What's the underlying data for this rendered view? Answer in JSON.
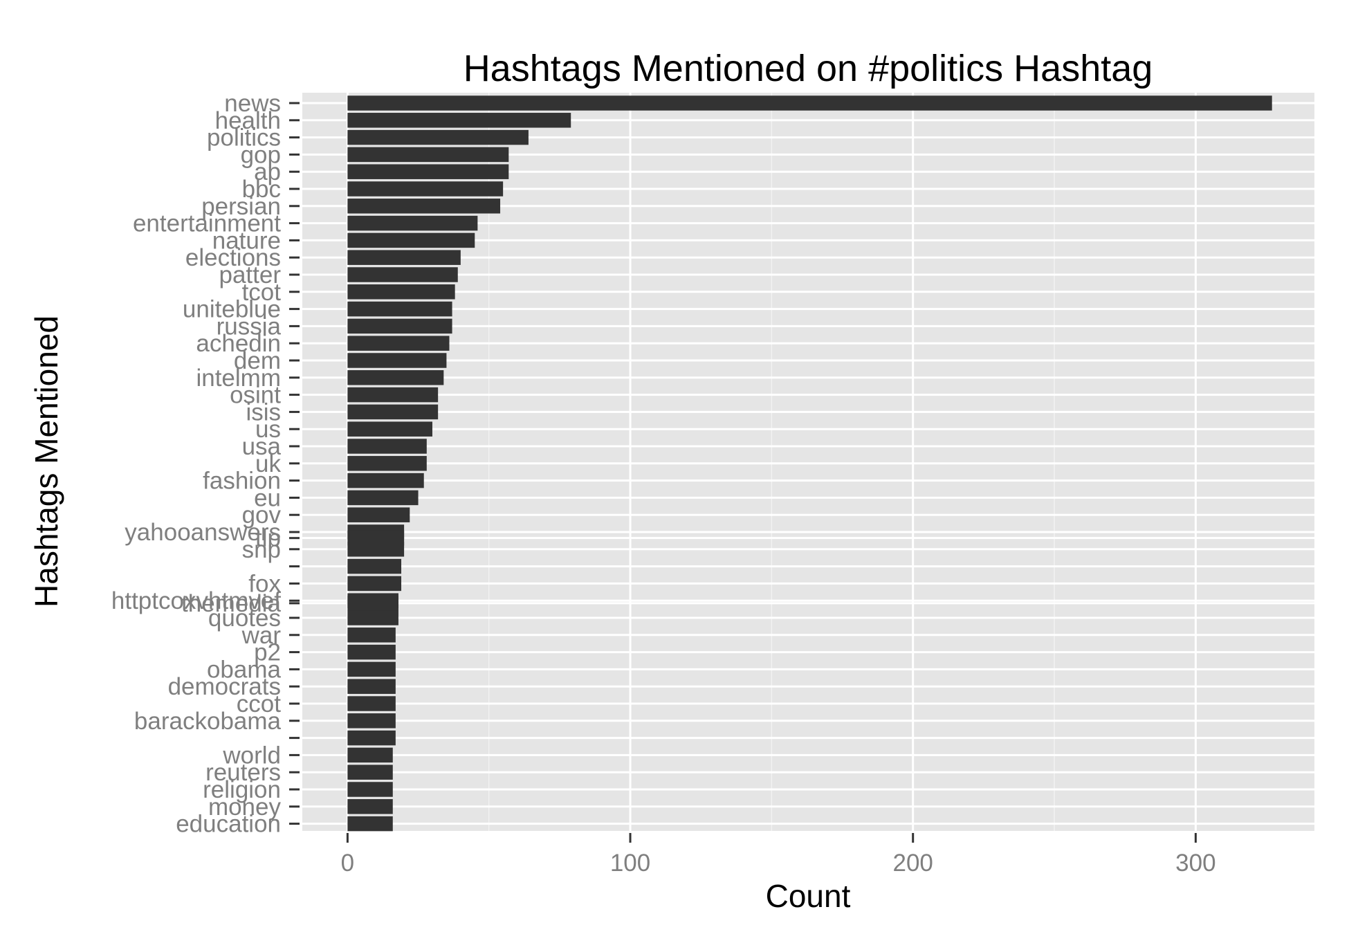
{
  "chart_data": {
    "type": "bar",
    "orientation": "horizontal",
    "title": "Hashtags Mentioned on #politics Hashtag",
    "xlabel": "Count",
    "ylabel": "Hashtags Mentioned",
    "xlim": [
      -16,
      342
    ],
    "x_ticks": [
      0,
      100,
      200,
      300
    ],
    "grid": true,
    "colors": {
      "bar": "#333333",
      "panel": "#e5e5e5",
      "grid": "#ffffff",
      "tick_label": "#7f7f7f"
    },
    "categories": [
      "news",
      "health",
      "politics",
      "gop",
      "ap",
      "bbc",
      "persian",
      "entertainment",
      "nature",
      "elections",
      "patter",
      "tcot",
      "uniteblue",
      "russia",
      "achedin",
      "dem",
      "intelmm",
      "osint",
      "isis",
      "us",
      "usa",
      "uk",
      "fashion",
      "eu",
      "gov",
      "yahooanswers",
      "tlp",
      "snp",
      "",
      "fox",
      "httptcoxvhtmvef",
      "themedia",
      "quotes",
      "war",
      "p2",
      "obama",
      "democrats",
      "ccot",
      "barackobama",
      "",
      "world",
      "reuters",
      "religion",
      "money",
      "education"
    ],
    "values": [
      327,
      79,
      64,
      57,
      57,
      55,
      54,
      46,
      45,
      40,
      39,
      38,
      37,
      37,
      36,
      35,
      34,
      32,
      32,
      30,
      28,
      28,
      27,
      25,
      22,
      20,
      20,
      20,
      19,
      19,
      18,
      18,
      18,
      17,
      17,
      17,
      17,
      17,
      17,
      17,
      16,
      16,
      16,
      16,
      16
    ],
    "rows": [
      0,
      1,
      2,
      3,
      4,
      5,
      6,
      7,
      8,
      9,
      10,
      11,
      12,
      13,
      14,
      15,
      16,
      17,
      18,
      19,
      20,
      21,
      22,
      23,
      24,
      25,
      25.35,
      26,
      27,
      28,
      29,
      29.15,
      30,
      31,
      32,
      33,
      34,
      35,
      36,
      37,
      38,
      39,
      40,
      41,
      42
    ]
  }
}
